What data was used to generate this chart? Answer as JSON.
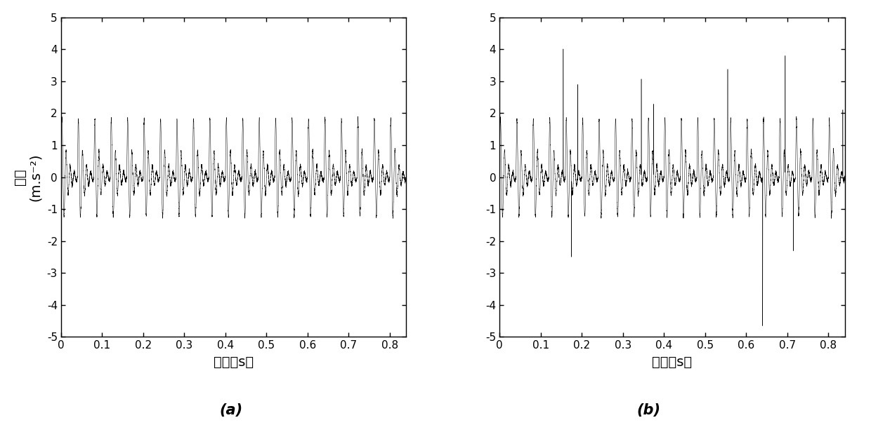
{
  "xlim": [
    0,
    0.84
  ],
  "ylim": [
    -5,
    5
  ],
  "yticks": [
    -5,
    -4,
    -3,
    -2,
    -1,
    0,
    1,
    2,
    3,
    4,
    5
  ],
  "xticks": [
    0,
    0.1,
    0.2,
    0.3,
    0.4,
    0.5,
    0.6,
    0.7,
    0.8
  ],
  "xlabel": "时间（s）",
  "ylabel": "幅値（m.s·s⁻²）",
  "ylabel_line1": "幅値",
  "ylabel_line2": "(m.s⁻²)",
  "label_a": "(a)",
  "label_b": "(b)",
  "background_color": "#ffffff",
  "signal_color": "#000000",
  "carrier_freq": 100,
  "envelope_freq": 25,
  "sample_rate": 10000,
  "duration": 0.84,
  "seed": 0,
  "spike_times_b": [
    0.155,
    0.175,
    0.19,
    0.345,
    0.375,
    0.555,
    0.64,
    0.695,
    0.715,
    0.835
  ],
  "spike_amps_b": [
    4.0,
    -2.5,
    2.9,
    3.0,
    2.3,
    3.35,
    -4.65,
    3.7,
    -2.3,
    2.1
  ]
}
